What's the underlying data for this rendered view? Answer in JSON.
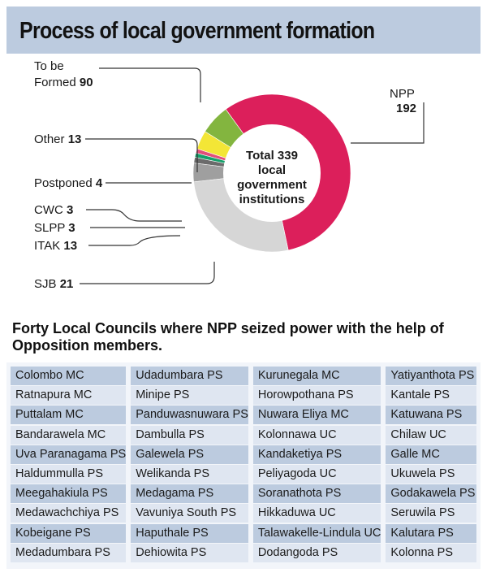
{
  "title": "Process of local government formation",
  "chart_data": {
    "type": "donut",
    "center_label": [
      "Total 339",
      "local",
      "government",
      "institutions"
    ],
    "total": 339,
    "slices": [
      {
        "name": "NPP",
        "value": 192,
        "color": "#dc1f5b",
        "label_side": "right"
      },
      {
        "name": "SJB",
        "value": 21,
        "color": "#83b53f",
        "label_side": "left"
      },
      {
        "name": "ITAK",
        "value": 13,
        "color": "#f3e636",
        "label_side": "left"
      },
      {
        "name": "SLPP",
        "value": 3,
        "color": "#e14e7a",
        "label_side": "left"
      },
      {
        "name": "CWC",
        "value": 3,
        "color": "#15a06b",
        "label_side": "left"
      },
      {
        "name": "Postponed",
        "value": 4,
        "color": "#6b6b6b",
        "label_side": "left"
      },
      {
        "name": "Other",
        "value": 13,
        "color": "#9f9f9f",
        "label_side": "left"
      },
      {
        "name": "To be Formed",
        "value": 90,
        "color": "#d6d6d6",
        "label_side": "left"
      }
    ]
  },
  "labels": {
    "npp_name": "NPP",
    "npp_value": "192",
    "to_be_line1": "To be",
    "to_be_line2": "Formed",
    "to_be_value": "90",
    "other_name": "Other",
    "other_value": "13",
    "postponed_name": "Postponed",
    "postponed_value": "4",
    "cwc_name": "CWC",
    "cwc_value": "3",
    "slpp_name": "SLPP",
    "slpp_value": "3",
    "itak_name": "ITAK",
    "itak_value": "13",
    "sjb_name": "SJB",
    "sjb_value": "21"
  },
  "section_heading": "Forty Local Councils where NPP  seized power with the help of Opposition members.",
  "councils": [
    [
      "Colombo MC",
      "Ratnapura MC",
      "Puttalam MC",
      "Bandarawela MC",
      "Uva Paranagama PS",
      "Haldummulla PS",
      "Meegahakiula PS",
      "Medawachchiya PS",
      "Kobeigane PS",
      "Medadumbara PS"
    ],
    [
      "Udadumbara PS",
      "Minipe PS",
      "Panduwasnuwara PS",
      "Dambulla PS",
      "Galewela PS",
      "Welikanda PS",
      "Medagama PS",
      "Vavuniya South PS",
      "Haputhale PS",
      "Dehiowita PS"
    ],
    [
      "Kurunegala MC",
      "Horowpothana PS",
      "Nuwara Eliya MC",
      "Kolonnawa UC",
      "Kandaketiya PS",
      "Peliyagoda UC",
      "Soranathota PS",
      "Hikkaduwa UC",
      "Talawakelle-Lindula UC",
      "Dodangoda PS"
    ],
    [
      "Yatiyanthota PS",
      "Kantale PS",
      "Katuwana PS",
      "Chilaw UC",
      "Galle MC",
      "Ukuwela PS",
      "Godakawela PS",
      "Seruwila PS",
      "Kalutara PS",
      "Kolonna PS"
    ]
  ]
}
